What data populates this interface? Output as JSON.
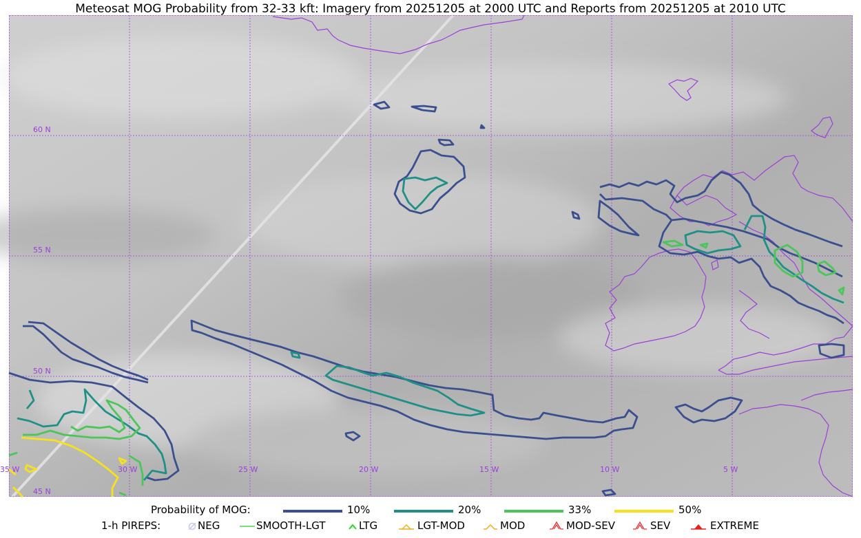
{
  "title": "Meteosat MOG Probability from 32-33 kft: Imagery from 20251205 at 2000 UTC and Reports from 20251205 at 2010 UTC",
  "map": {
    "lat_labels": [
      "60 N",
      "55 N",
      "50 N",
      "45 N"
    ],
    "lon_labels": [
      "35 W",
      "30 W",
      "25 W",
      "20 W",
      "15 W",
      "10 W",
      "5 W"
    ],
    "colors": {
      "graticule": "#a040e0",
      "coastline": "#9b3fd6",
      "p10": "#3b4f8f",
      "p20": "#1f9086",
      "p33": "#4cc55a",
      "p50": "#f5e21b"
    }
  },
  "legend": {
    "prob_title": "Probability of MOG:",
    "prob_items": [
      "10%",
      "20%",
      "33%",
      "50%"
    ],
    "pirep_title": "1-h PIREPS:",
    "pirep_items": [
      "NEG",
      "SMOOTH-LGT",
      "LTG",
      "LGT-MOD",
      "MOD",
      "MOD-SEV",
      "SEV",
      "EXTREME"
    ],
    "pirep_icons": [
      "neg-icon",
      "smooth-lgt-icon",
      "ltg-icon",
      "lgt-mod-icon",
      "mod-icon",
      "mod-sev-icon",
      "sev-icon",
      "extreme-icon"
    ]
  }
}
